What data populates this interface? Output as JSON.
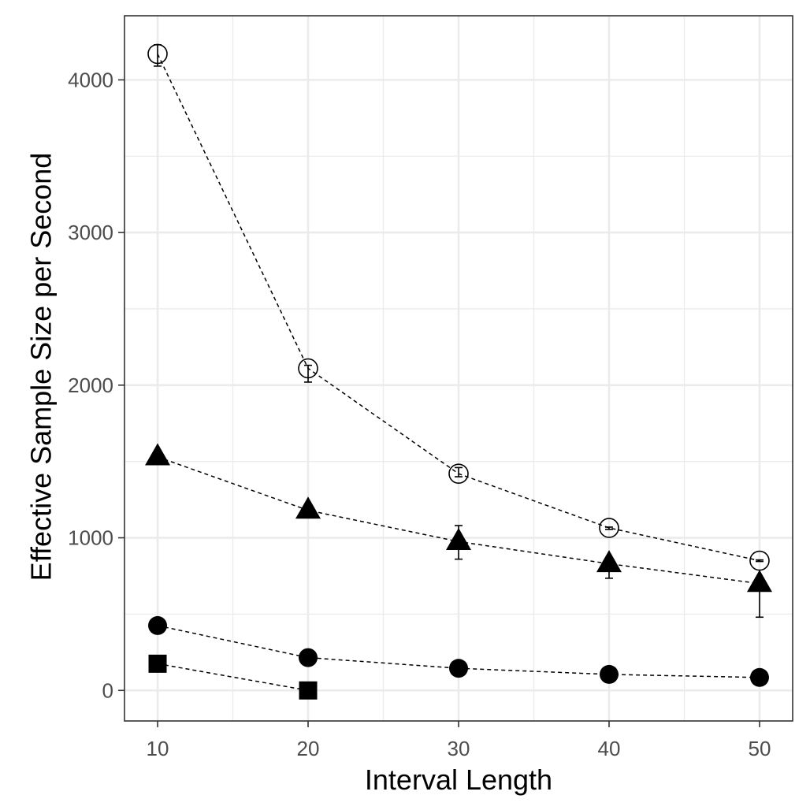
{
  "chart_data": {
    "type": "scatter",
    "xlabel": "Interval Length",
    "ylabel": "Effective Sample Size per Second",
    "xlim": [
      7.8,
      52.2
    ],
    "ylim": [
      -200,
      4420
    ],
    "x_ticks": [
      10,
      20,
      30,
      40,
      50
    ],
    "y_ticks": [
      0,
      1000,
      2000,
      3000,
      4000
    ],
    "x_tick_labels": [
      "10",
      "20",
      "30",
      "40",
      "50"
    ],
    "y_tick_labels": [
      "0",
      "1000",
      "2000",
      "3000",
      "4000"
    ],
    "x_minor_ticks": [
      15,
      25,
      35,
      45
    ],
    "y_minor_ticks": [
      500,
      1500,
      2500,
      3500
    ],
    "grid": true,
    "legend": "none",
    "line_style": "dashed",
    "series": [
      {
        "marker": "open-circle",
        "points": [
          {
            "x": 10,
            "y": 4170,
            "lo": 4090,
            "hi": 4230
          },
          {
            "x": 20,
            "y": 2110,
            "lo": 2020,
            "hi": 2130
          },
          {
            "x": 30,
            "y": 1420,
            "lo": 1400,
            "hi": 1460
          },
          {
            "x": 40,
            "y": 1065,
            "lo": 1055,
            "hi": 1070
          },
          {
            "x": 50,
            "y": 850,
            "lo": 845,
            "hi": 855
          }
        ]
      },
      {
        "marker": "filled-triangle",
        "points": [
          {
            "x": 10,
            "y": 1530,
            "lo": 1510,
            "hi": 1530
          },
          {
            "x": 20,
            "y": 1180,
            "lo": 1165,
            "hi": 1185
          },
          {
            "x": 30,
            "y": 975,
            "lo": 860,
            "hi": 1080
          },
          {
            "x": 40,
            "y": 830,
            "lo": 735,
            "hi": 835
          },
          {
            "x": 50,
            "y": 700,
            "lo": 480,
            "hi": 700
          }
        ]
      },
      {
        "marker": "filled-circle",
        "points": [
          {
            "x": 10,
            "y": 425
          },
          {
            "x": 20,
            "y": 215
          },
          {
            "x": 30,
            "y": 145
          },
          {
            "x": 40,
            "y": 105
          },
          {
            "x": 50,
            "y": 85
          }
        ]
      },
      {
        "marker": "filled-square",
        "points": [
          {
            "x": 10,
            "y": 175
          },
          {
            "x": 20,
            "y": 0
          }
        ]
      }
    ]
  }
}
